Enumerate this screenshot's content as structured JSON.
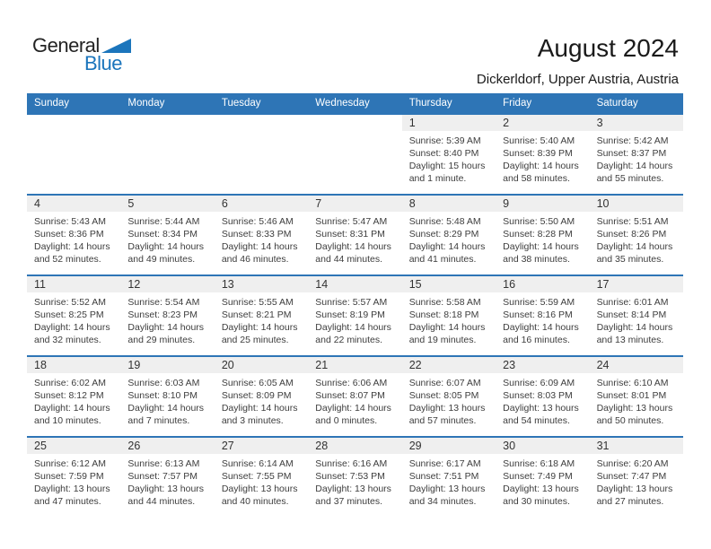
{
  "logo": {
    "word1": "General",
    "word2": "Blue"
  },
  "header": {
    "title": "August 2024",
    "subtitle": "Dickerldorf, Upper Austria, Austria"
  },
  "colors": {
    "header_blue": "#2E75B6",
    "band_gray": "#EFEFEF",
    "logo_blue": "#1B75BC"
  },
  "weekday_headers": [
    "Sunday",
    "Monday",
    "Tuesday",
    "Wednesday",
    "Thursday",
    "Friday",
    "Saturday"
  ],
  "weeks": [
    [
      null,
      null,
      null,
      null,
      {
        "day": "1",
        "sunrise": "Sunrise: 5:39 AM",
        "sunset": "Sunset: 8:40 PM",
        "daylight_line1": "Daylight: 15 hours",
        "daylight_line2": "and 1 minute."
      },
      {
        "day": "2",
        "sunrise": "Sunrise: 5:40 AM",
        "sunset": "Sunset: 8:39 PM",
        "daylight_line1": "Daylight: 14 hours",
        "daylight_line2": "and 58 minutes."
      },
      {
        "day": "3",
        "sunrise": "Sunrise: 5:42 AM",
        "sunset": "Sunset: 8:37 PM",
        "daylight_line1": "Daylight: 14 hours",
        "daylight_line2": "and 55 minutes."
      }
    ],
    [
      {
        "day": "4",
        "sunrise": "Sunrise: 5:43 AM",
        "sunset": "Sunset: 8:36 PM",
        "daylight_line1": "Daylight: 14 hours",
        "daylight_line2": "and 52 minutes."
      },
      {
        "day": "5",
        "sunrise": "Sunrise: 5:44 AM",
        "sunset": "Sunset: 8:34 PM",
        "daylight_line1": "Daylight: 14 hours",
        "daylight_line2": "and 49 minutes."
      },
      {
        "day": "6",
        "sunrise": "Sunrise: 5:46 AM",
        "sunset": "Sunset: 8:33 PM",
        "daylight_line1": "Daylight: 14 hours",
        "daylight_line2": "and 46 minutes."
      },
      {
        "day": "7",
        "sunrise": "Sunrise: 5:47 AM",
        "sunset": "Sunset: 8:31 PM",
        "daylight_line1": "Daylight: 14 hours",
        "daylight_line2": "and 44 minutes."
      },
      {
        "day": "8",
        "sunrise": "Sunrise: 5:48 AM",
        "sunset": "Sunset: 8:29 PM",
        "daylight_line1": "Daylight: 14 hours",
        "daylight_line2": "and 41 minutes."
      },
      {
        "day": "9",
        "sunrise": "Sunrise: 5:50 AM",
        "sunset": "Sunset: 8:28 PM",
        "daylight_line1": "Daylight: 14 hours",
        "daylight_line2": "and 38 minutes."
      },
      {
        "day": "10",
        "sunrise": "Sunrise: 5:51 AM",
        "sunset": "Sunset: 8:26 PM",
        "daylight_line1": "Daylight: 14 hours",
        "daylight_line2": "and 35 minutes."
      }
    ],
    [
      {
        "day": "11",
        "sunrise": "Sunrise: 5:52 AM",
        "sunset": "Sunset: 8:25 PM",
        "daylight_line1": "Daylight: 14 hours",
        "daylight_line2": "and 32 minutes."
      },
      {
        "day": "12",
        "sunrise": "Sunrise: 5:54 AM",
        "sunset": "Sunset: 8:23 PM",
        "daylight_line1": "Daylight: 14 hours",
        "daylight_line2": "and 29 minutes."
      },
      {
        "day": "13",
        "sunrise": "Sunrise: 5:55 AM",
        "sunset": "Sunset: 8:21 PM",
        "daylight_line1": "Daylight: 14 hours",
        "daylight_line2": "and 25 minutes."
      },
      {
        "day": "14",
        "sunrise": "Sunrise: 5:57 AM",
        "sunset": "Sunset: 8:19 PM",
        "daylight_line1": "Daylight: 14 hours",
        "daylight_line2": "and 22 minutes."
      },
      {
        "day": "15",
        "sunrise": "Sunrise: 5:58 AM",
        "sunset": "Sunset: 8:18 PM",
        "daylight_line1": "Daylight: 14 hours",
        "daylight_line2": "and 19 minutes."
      },
      {
        "day": "16",
        "sunrise": "Sunrise: 5:59 AM",
        "sunset": "Sunset: 8:16 PM",
        "daylight_line1": "Daylight: 14 hours",
        "daylight_line2": "and 16 minutes."
      },
      {
        "day": "17",
        "sunrise": "Sunrise: 6:01 AM",
        "sunset": "Sunset: 8:14 PM",
        "daylight_line1": "Daylight: 14 hours",
        "daylight_line2": "and 13 minutes."
      }
    ],
    [
      {
        "day": "18",
        "sunrise": "Sunrise: 6:02 AM",
        "sunset": "Sunset: 8:12 PM",
        "daylight_line1": "Daylight: 14 hours",
        "daylight_line2": "and 10 minutes."
      },
      {
        "day": "19",
        "sunrise": "Sunrise: 6:03 AM",
        "sunset": "Sunset: 8:10 PM",
        "daylight_line1": "Daylight: 14 hours",
        "daylight_line2": "and 7 minutes."
      },
      {
        "day": "20",
        "sunrise": "Sunrise: 6:05 AM",
        "sunset": "Sunset: 8:09 PM",
        "daylight_line1": "Daylight: 14 hours",
        "daylight_line2": "and 3 minutes."
      },
      {
        "day": "21",
        "sunrise": "Sunrise: 6:06 AM",
        "sunset": "Sunset: 8:07 PM",
        "daylight_line1": "Daylight: 14 hours",
        "daylight_line2": "and 0 minutes."
      },
      {
        "day": "22",
        "sunrise": "Sunrise: 6:07 AM",
        "sunset": "Sunset: 8:05 PM",
        "daylight_line1": "Daylight: 13 hours",
        "daylight_line2": "and 57 minutes."
      },
      {
        "day": "23",
        "sunrise": "Sunrise: 6:09 AM",
        "sunset": "Sunset: 8:03 PM",
        "daylight_line1": "Daylight: 13 hours",
        "daylight_line2": "and 54 minutes."
      },
      {
        "day": "24",
        "sunrise": "Sunrise: 6:10 AM",
        "sunset": "Sunset: 8:01 PM",
        "daylight_line1": "Daylight: 13 hours",
        "daylight_line2": "and 50 minutes."
      }
    ],
    [
      {
        "day": "25",
        "sunrise": "Sunrise: 6:12 AM",
        "sunset": "Sunset: 7:59 PM",
        "daylight_line1": "Daylight: 13 hours",
        "daylight_line2": "and 47 minutes."
      },
      {
        "day": "26",
        "sunrise": "Sunrise: 6:13 AM",
        "sunset": "Sunset: 7:57 PM",
        "daylight_line1": "Daylight: 13 hours",
        "daylight_line2": "and 44 minutes."
      },
      {
        "day": "27",
        "sunrise": "Sunrise: 6:14 AM",
        "sunset": "Sunset: 7:55 PM",
        "daylight_line1": "Daylight: 13 hours",
        "daylight_line2": "and 40 minutes."
      },
      {
        "day": "28",
        "sunrise": "Sunrise: 6:16 AM",
        "sunset": "Sunset: 7:53 PM",
        "daylight_line1": "Daylight: 13 hours",
        "daylight_line2": "and 37 minutes."
      },
      {
        "day": "29",
        "sunrise": "Sunrise: 6:17 AM",
        "sunset": "Sunset: 7:51 PM",
        "daylight_line1": "Daylight: 13 hours",
        "daylight_line2": "and 34 minutes."
      },
      {
        "day": "30",
        "sunrise": "Sunrise: 6:18 AM",
        "sunset": "Sunset: 7:49 PM",
        "daylight_line1": "Daylight: 13 hours",
        "daylight_line2": "and 30 minutes."
      },
      {
        "day": "31",
        "sunrise": "Sunrise: 6:20 AM",
        "sunset": "Sunset: 7:47 PM",
        "daylight_line1": "Daylight: 13 hours",
        "daylight_line2": "and 27 minutes."
      }
    ]
  ]
}
